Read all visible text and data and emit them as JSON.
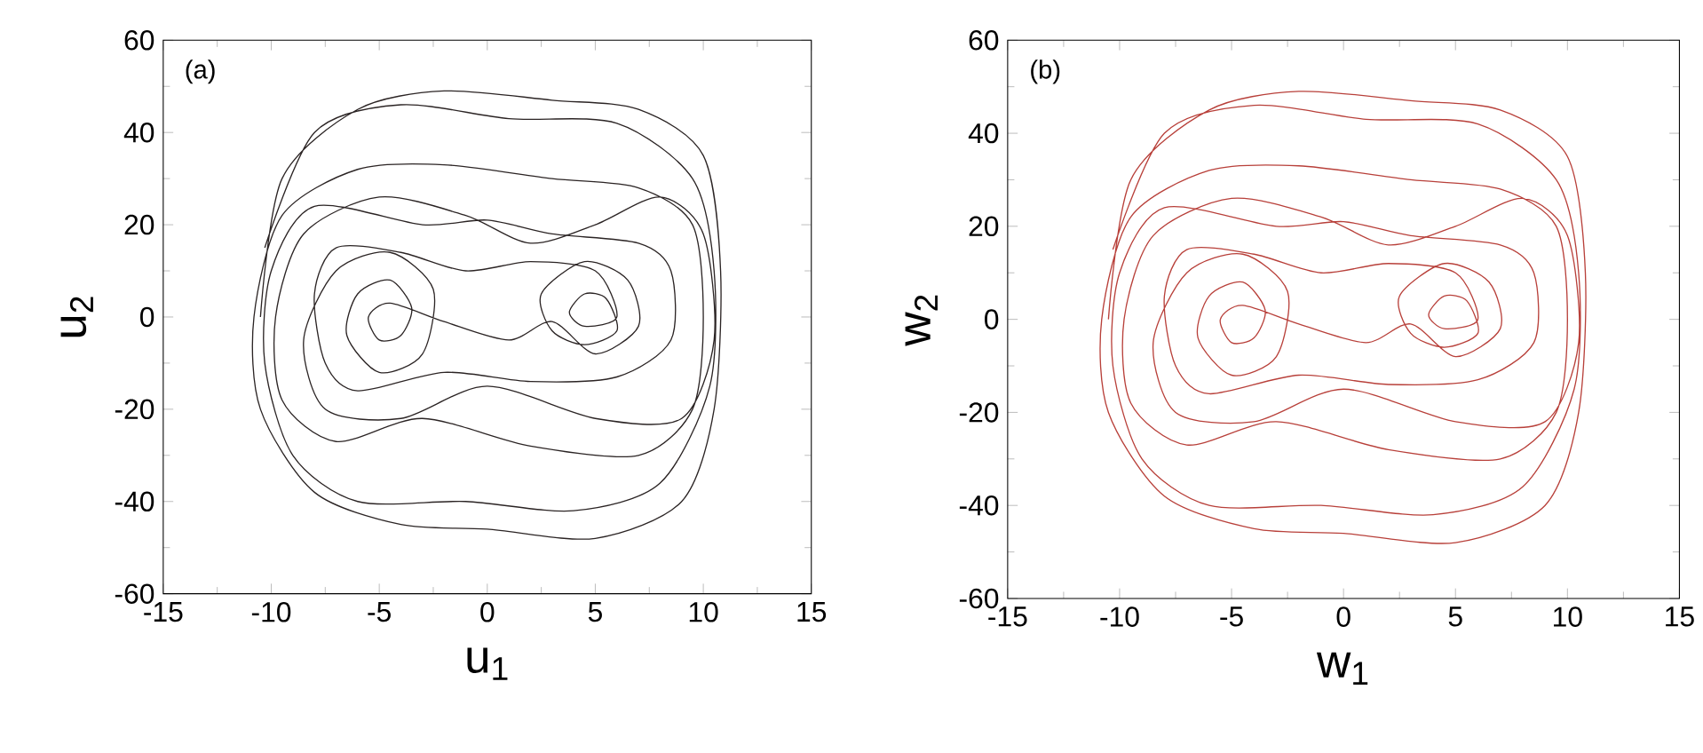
{
  "chart_data": [
    {
      "type": "line",
      "xlabel": "u$_{1}$",
      "ylabel": "u$_{2}$",
      "annotations": [
        "(a)"
      ],
      "xlim": [
        -15,
        15
      ],
      "ylim": [
        -60,
        60
      ],
      "xticks": [
        -15,
        -10,
        -5,
        0,
        5,
        10,
        15
      ],
      "yticks": [
        -60,
        -40,
        -20,
        0,
        20,
        40,
        60
      ],
      "series": [
        {
          "color": "#2b2424",
          "x": [
            -10.5,
            -9.5,
            -6,
            -2,
            3,
            7,
            10,
            10.8,
            10.5,
            9,
            5,
            0,
            -4,
            -8,
            -10.5,
            -10.8,
            -9.5,
            -6,
            -2,
            3,
            7,
            9.5,
            10,
            9.5,
            7,
            2,
            -3,
            -7,
            -9.5,
            -9.8,
            -8.5,
            -5,
            -1,
            2,
            5,
            8,
            10,
            10.5,
            9,
            5,
            0,
            -4,
            -7.5,
            -8.5,
            -7,
            -4.5,
            -2.5,
            -3,
            -5,
            -6.5,
            -6,
            -4.5,
            -3.5,
            -4,
            -5,
            -5.5,
            -4.5,
            -2,
            1,
            3,
            5,
            7,
            6.5,
            4.5,
            2.5,
            3,
            4.5,
            6,
            5.5,
            4.5,
            3.8,
            4.5,
            6,
            5,
            2,
            -1,
            -4,
            -7,
            -8,
            -7.5,
            -6,
            -2,
            2,
            6,
            8.5,
            8.5,
            7,
            3,
            0,
            -3,
            -8,
            -10,
            -10.3,
            -9,
            -6,
            -1,
            4,
            8,
            10.3,
            10.5,
            9.5,
            6,
            1,
            -4,
            -8,
            -10.3
          ],
          "values": [
            0,
            30,
            45,
            49,
            47,
            45,
            35,
            10,
            -20,
            -40,
            -48,
            -46,
            -45,
            -38,
            -20,
            0,
            22,
            32,
            33,
            30,
            28,
            20,
            0,
            -20,
            -30,
            -28,
            -22,
            -27,
            -18,
            0,
            18,
            26,
            22,
            16,
            20,
            26,
            18,
            -5,
            -22,
            -22,
            -15,
            -22,
            -20,
            -5,
            10,
            14,
            6,
            -8,
            -12,
            -4,
            5,
            8,
            2,
            -4,
            -5,
            0,
            3,
            -1,
            -5,
            -1,
            -8,
            -2,
            8,
            12,
            5,
            -3,
            -6,
            -3,
            4,
            5,
            1,
            -2,
            0,
            10,
            12,
            10,
            14,
            15,
            5,
            -10,
            -16,
            -12,
            -14,
            -13,
            -5,
            10,
            16,
            18,
            21,
            20,
            24,
            10,
            -10,
            -30,
            -40,
            -40,
            -42,
            -36,
            -15,
            10,
            30,
            42,
            43,
            46,
            40,
            15
          ]
        }
      ]
    },
    {
      "type": "line",
      "xlabel": "w$_{1}$",
      "ylabel": "w$_{2}$",
      "annotations": [
        "(b)"
      ],
      "xlim": [
        -15,
        15
      ],
      "ylim": [
        -60,
        60
      ],
      "xticks": [
        -15,
        -10,
        -5,
        0,
        5,
        10,
        15
      ],
      "yticks": [
        -60,
        -40,
        -20,
        0,
        20,
        40,
        60
      ],
      "series": [
        {
          "color": "#b8403a",
          "x": [
            -10.5,
            -9.5,
            -6,
            -2,
            3,
            7,
            10,
            10.8,
            10.5,
            9,
            5,
            0,
            -4,
            -8,
            -10.5,
            -10.8,
            -9.5,
            -6,
            -2,
            3,
            7,
            9.5,
            10,
            9.5,
            7,
            2,
            -3,
            -7,
            -9.5,
            -9.8,
            -8.5,
            -5,
            -1,
            2,
            5,
            8,
            10,
            10.5,
            9,
            5,
            0,
            -4,
            -7.5,
            -8.5,
            -7,
            -4.5,
            -2.5,
            -3,
            -5,
            -6.5,
            -6,
            -4.5,
            -3.5,
            -4,
            -5,
            -5.5,
            -4.5,
            -2,
            1,
            3,
            5,
            7,
            6.5,
            4.5,
            2.5,
            3,
            4.5,
            6,
            5.5,
            4.5,
            3.8,
            4.5,
            6,
            5,
            2,
            -1,
            -4,
            -7,
            -8,
            -7.5,
            -6,
            -2,
            2,
            6,
            8.5,
            8.5,
            7,
            3,
            0,
            -3,
            -8,
            -10,
            -10.3,
            -9,
            -6,
            -1,
            4,
            8,
            10.3,
            10.5,
            9.5,
            6,
            1,
            -4,
            -8,
            -10.3
          ],
          "values": [
            0,
            30,
            45,
            49,
            47,
            45,
            35,
            10,
            -20,
            -40,
            -48,
            -46,
            -45,
            -38,
            -20,
            0,
            22,
            32,
            33,
            30,
            28,
            20,
            0,
            -20,
            -30,
            -28,
            -22,
            -27,
            -18,
            0,
            18,
            26,
            22,
            16,
            20,
            26,
            18,
            -5,
            -22,
            -22,
            -15,
            -22,
            -20,
            -5,
            10,
            14,
            6,
            -8,
            -12,
            -4,
            5,
            8,
            2,
            -4,
            -5,
            0,
            3,
            -1,
            -5,
            -1,
            -8,
            -2,
            8,
            12,
            5,
            -3,
            -6,
            -3,
            4,
            5,
            1,
            -2,
            0,
            10,
            12,
            10,
            14,
            15,
            5,
            -10,
            -16,
            -12,
            -14,
            -13,
            -5,
            10,
            16,
            18,
            21,
            20,
            24,
            10,
            -10,
            -30,
            -40,
            -40,
            -42,
            -36,
            -15,
            10,
            30,
            42,
            43,
            46,
            40,
            15
          ]
        }
      ]
    }
  ]
}
